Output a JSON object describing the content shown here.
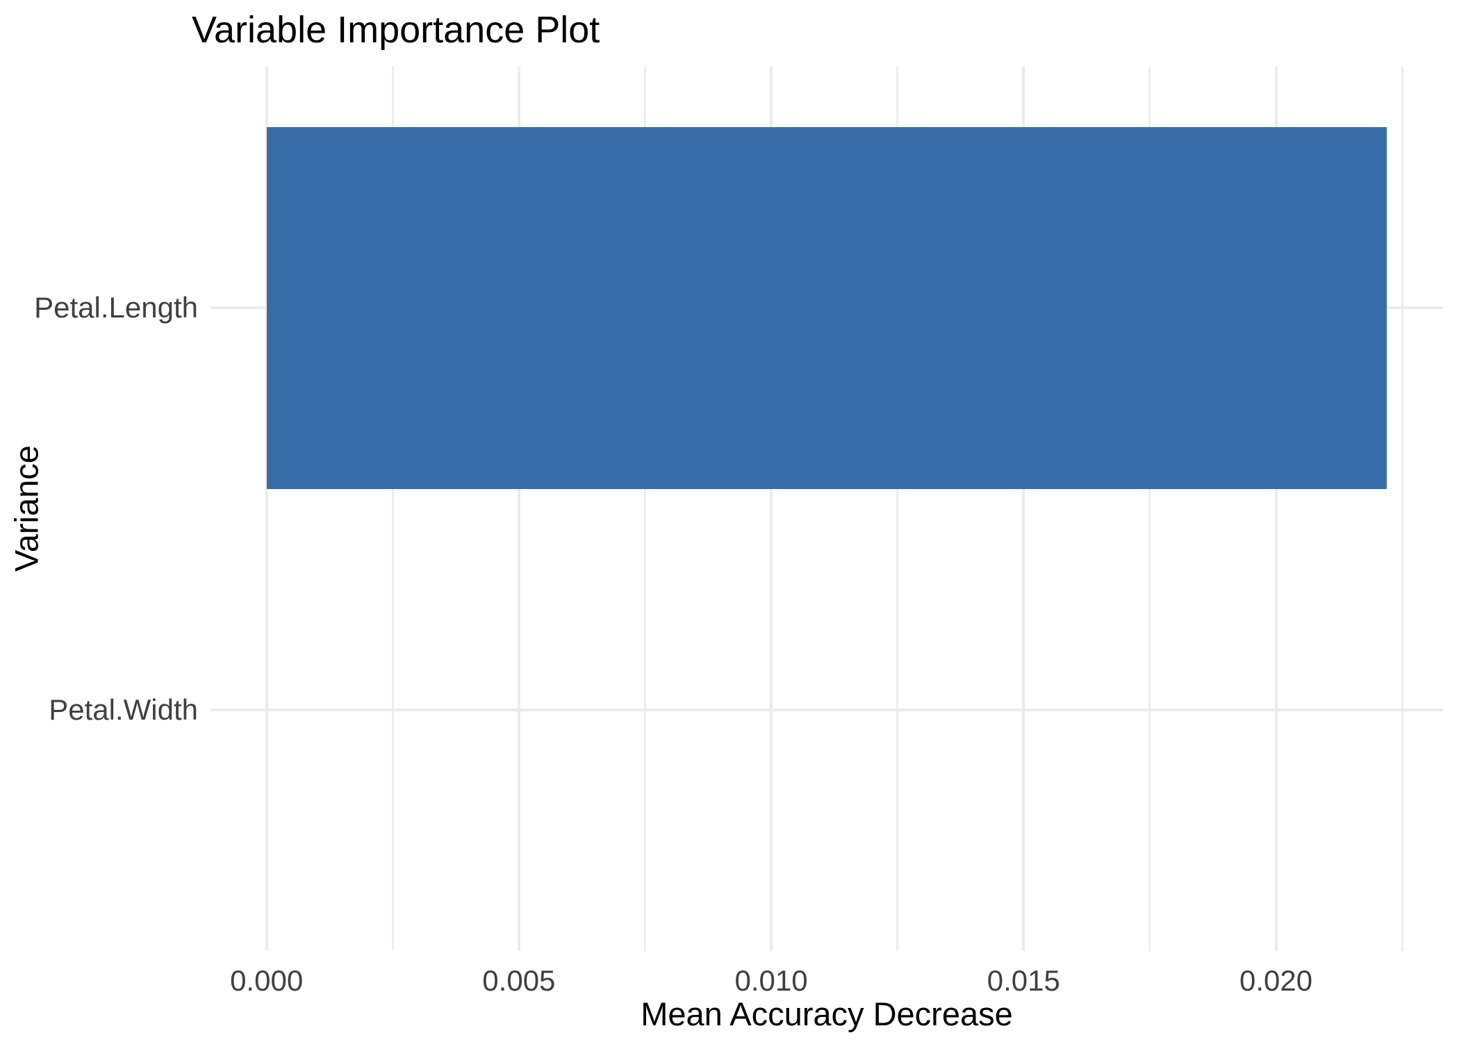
{
  "chart_data": {
    "type": "bar",
    "orientation": "horizontal",
    "title": "Variable Importance Plot",
    "xlabel": "Mean Accuracy Decrease",
    "ylabel": "Variance",
    "categories": [
      "Petal.Length",
      "Petal.Width"
    ],
    "values": [
      0.0222,
      0.0
    ],
    "xlim": [
      -0.00111,
      0.02331
    ],
    "x_major_ticks": [
      {
        "value": 0.0,
        "label": "0.000"
      },
      {
        "value": 0.005,
        "label": "0.005"
      },
      {
        "value": 0.01,
        "label": "0.010"
      },
      {
        "value": 0.015,
        "label": "0.015"
      },
      {
        "value": 0.02,
        "label": "0.020"
      }
    ],
    "x_minor_ticks": [
      0.0025,
      0.0075,
      0.0125,
      0.0175,
      0.0225
    ],
    "grid": true,
    "legend_position": "none",
    "colors": {
      "bar_fill": "#386CA6",
      "grid_major": "#EBEBEB",
      "grid_minor": "#EDEDED",
      "tick_label": "#404040",
      "title": "#000000",
      "background": "#FFFFFF"
    }
  }
}
